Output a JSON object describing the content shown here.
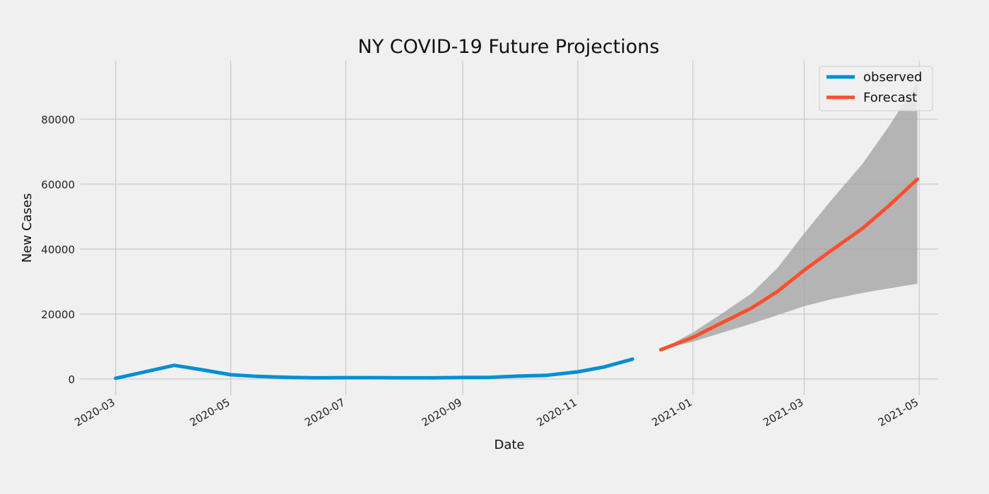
{
  "chart_data": {
    "type": "line",
    "title": "NY COVID-19 Future Projections",
    "xlabel": "Date",
    "ylabel": "New Cases",
    "x_ticks": [
      "2020-03",
      "2020-05",
      "2020-07",
      "2020-09",
      "2020-11",
      "2021-01",
      "2021-03",
      "2021-05"
    ],
    "y_ticks": [
      0,
      20000,
      40000,
      60000,
      80000
    ],
    "y_tick_labels": [
      "0",
      "20000",
      "40000",
      "60000",
      "80000"
    ],
    "xlim": [
      "2020-02-11",
      "2021-05-11"
    ],
    "ylim": [
      -5000,
      98000
    ],
    "grid": true,
    "legend_position": "top-right",
    "colors": {
      "background": "#f0f0f0",
      "grid": "#cbcbcb",
      "observed": "#008fd5",
      "forecast": "#fc4f30",
      "confidence_band": "#a0a0a0"
    },
    "series": [
      {
        "name": "observed",
        "x": [
          "2020-03-01",
          "2020-03-15",
          "2020-04-01",
          "2020-04-15",
          "2020-05-01",
          "2020-05-15",
          "2020-06-01",
          "2020-06-15",
          "2020-07-01",
          "2020-07-15",
          "2020-08-01",
          "2020-08-15",
          "2020-09-01",
          "2020-09-15",
          "2020-10-01",
          "2020-10-15",
          "2020-11-01",
          "2020-11-15",
          "2020-11-30"
        ],
        "y": [
          200,
          2000,
          4200,
          2900,
          1300,
          800,
          500,
          350,
          400,
          400,
          350,
          350,
          450,
          500,
          900,
          1100,
          2200,
          3700,
          6100
        ]
      },
      {
        "name": "Forecast",
        "x": [
          "2020-12-15",
          "2021-01-01",
          "2021-01-15",
          "2021-02-01",
          "2021-02-15",
          "2021-03-01",
          "2021-03-15",
          "2021-04-01",
          "2021-04-15",
          "2021-04-30"
        ],
        "y": [
          9000,
          12800,
          16900,
          21800,
          27000,
          33500,
          39400,
          46400,
          53400,
          61500
        ],
        "lower": [
          9000,
          11500,
          14000,
          17000,
          19700,
          22400,
          24500,
          26500,
          27900,
          29300
        ],
        "upper": [
          9000,
          14300,
          19600,
          26300,
          34300,
          44800,
          54800,
          66300,
          77900,
          91500
        ]
      }
    ]
  }
}
